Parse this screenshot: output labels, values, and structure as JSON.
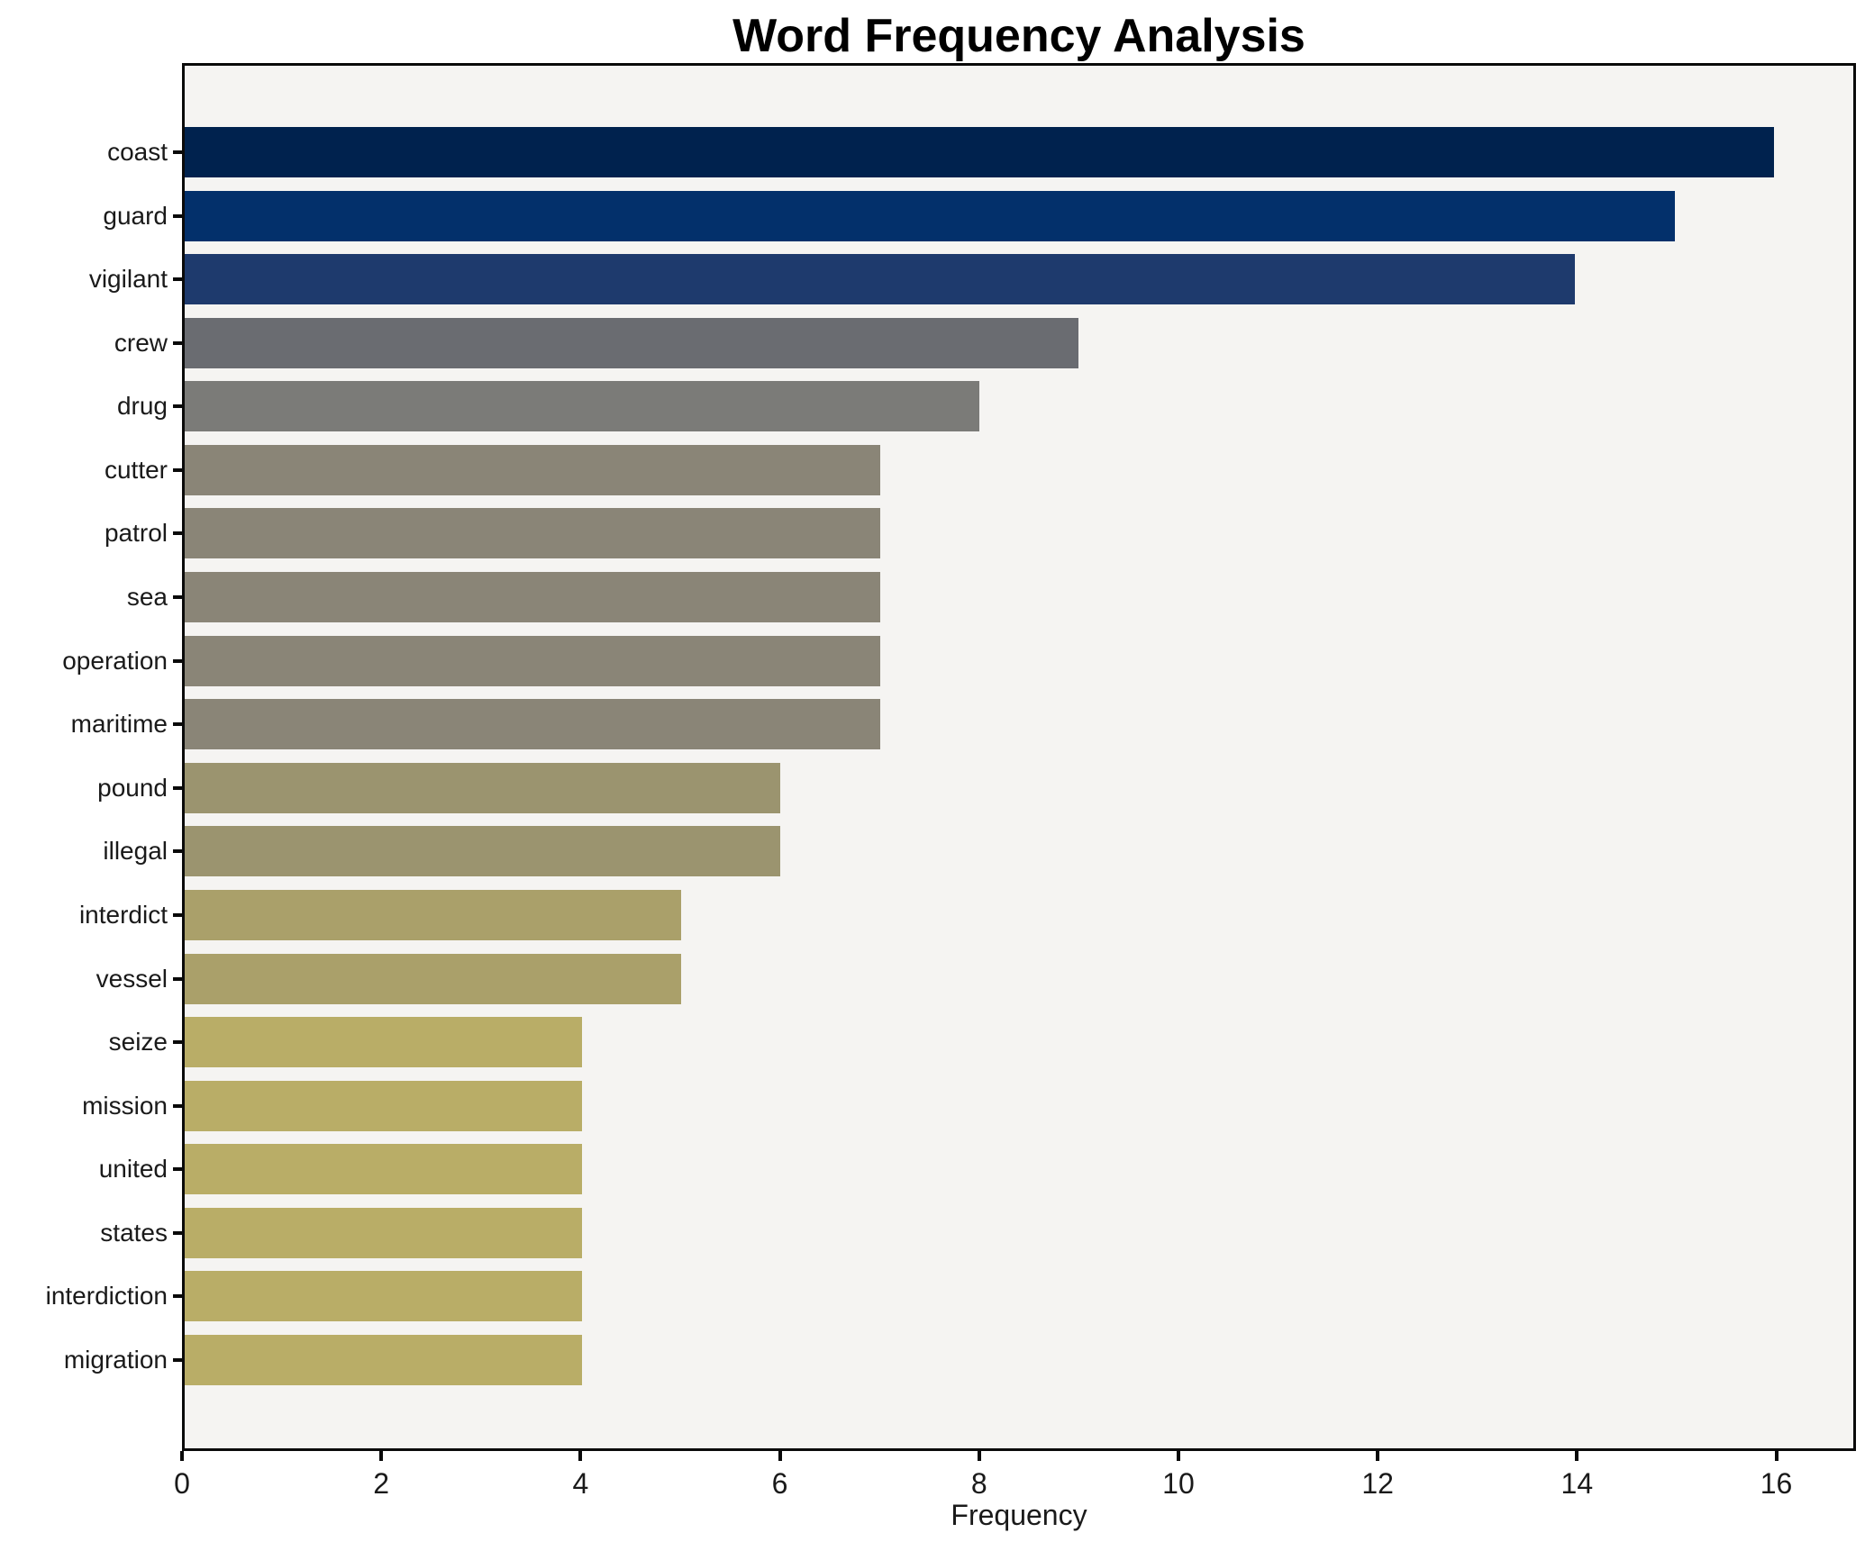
{
  "title": "Word Frequency Analysis",
  "chart_data": {
    "type": "bar",
    "orientation": "horizontal",
    "title": "Word Frequency Analysis",
    "xlabel": "Frequency",
    "ylabel": "",
    "categories": [
      "coast",
      "guard",
      "vigilant",
      "crew",
      "drug",
      "cutter",
      "patrol",
      "sea",
      "operation",
      "maritime",
      "pound",
      "illegal",
      "interdict",
      "vessel",
      "seize",
      "mission",
      "united",
      "states",
      "interdiction",
      "migration"
    ],
    "values": [
      16,
      15,
      14,
      9,
      8,
      7,
      7,
      7,
      7,
      7,
      6,
      6,
      5,
      5,
      4,
      4,
      4,
      4,
      4,
      4
    ],
    "bar_colors": [
      "#00224e",
      "#03306b",
      "#1e3a6d",
      "#6a6c71",
      "#7b7b78",
      "#8a8577",
      "#8a8577",
      "#8a8577",
      "#8a8577",
      "#8a8577",
      "#9b946f",
      "#9b946f",
      "#aaa06a",
      "#aaa06a",
      "#b9ad67",
      "#b9ad67",
      "#b9ad67",
      "#b9ad67",
      "#b9ad67",
      "#b9ad67"
    ],
    "xlim": [
      0,
      16.8
    ],
    "xticks": [
      0,
      2,
      4,
      6,
      8,
      10,
      12,
      14,
      16
    ],
    "grid": false,
    "legend": null,
    "colors": {
      "plot_bg": "#f5f4f2",
      "figure_bg": "#ffffff",
      "axis": "#0a0a0a",
      "text": "#1a1a1a"
    }
  }
}
